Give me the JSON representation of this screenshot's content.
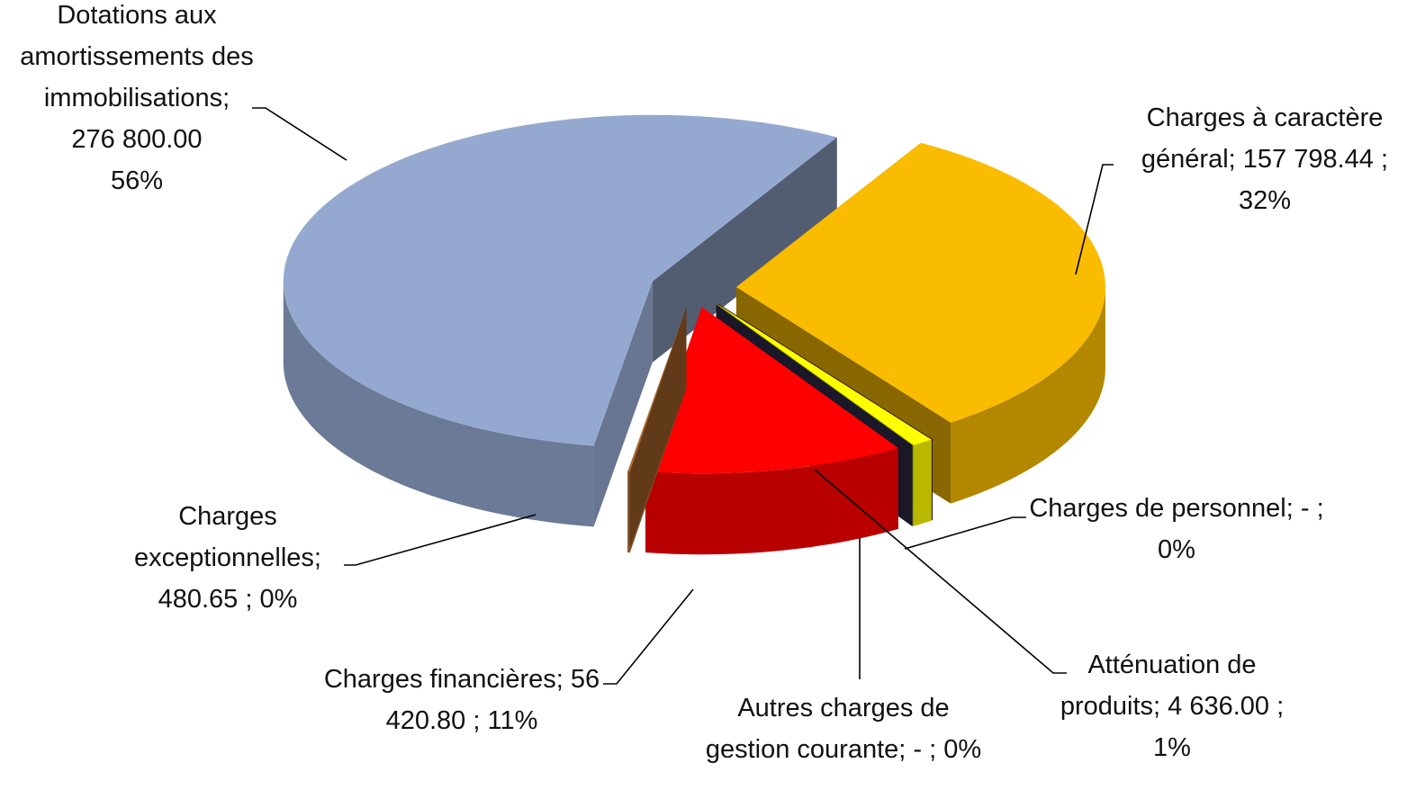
{
  "chart_data": {
    "type": "pie3d",
    "categories": [
      "Charges à caractère général",
      "Charges de personnel",
      "Atténuation de produits",
      "Autres charges de gestion courante",
      "Charges financières",
      "Charges exceptionnelles",
      "Dotations aux amortissements des immobilisations"
    ],
    "values": [
      157798.44,
      0,
      4636,
      0,
      56420.8,
      480.65,
      276800
    ],
    "value_labels": [
      "157 798.44",
      "-",
      "4 636.00",
      "-",
      "56 420.80",
      "480.65",
      "276 800.00"
    ],
    "percents": [
      32,
      0,
      1,
      0,
      11,
      0,
      56
    ],
    "percent_labels": [
      "32%",
      "0%",
      "1%",
      "0%",
      "11%",
      "0%",
      "56%"
    ],
    "label_separator": ";",
    "colors": [
      "#f9bc00",
      "#5a2222",
      "#ffff00",
      "#2e2a48",
      "#ff0000",
      "#b06a30",
      "#95a9d0"
    ],
    "exploded": true
  }
}
